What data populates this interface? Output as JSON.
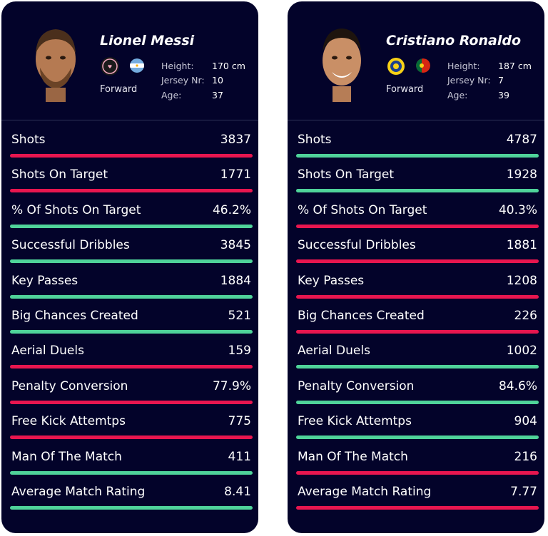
{
  "players": [
    {
      "name": "Lionel Messi",
      "position": "Forward",
      "info": [
        {
          "label": "Height:",
          "value": "170 cm"
        },
        {
          "label": "Jersey Nr:",
          "value": "10"
        },
        {
          "label": "Age:",
          "value": "37"
        }
      ],
      "stats": [
        {
          "label": "Shots",
          "value": "3837",
          "status": "red"
        },
        {
          "label": "Shots On Target",
          "value": "1771",
          "status": "red"
        },
        {
          "label": "% Of Shots On Target",
          "value": "46.2%",
          "status": "green"
        },
        {
          "label": "Successful Dribbles",
          "value": "3845",
          "status": "green"
        },
        {
          "label": "Key Passes",
          "value": "1884",
          "status": "green"
        },
        {
          "label": "Big Chances Created",
          "value": "521",
          "status": "green"
        },
        {
          "label": "Aerial Duels",
          "value": "159",
          "status": "red"
        },
        {
          "label": "Penalty Conversion",
          "value": "77.9%",
          "status": "red"
        },
        {
          "label": "Free Kick Attemtps",
          "value": "775",
          "status": "red"
        },
        {
          "label": "Man Of The Match",
          "value": "411",
          "status": "green"
        },
        {
          "label": "Average Match Rating",
          "value": "8.41",
          "status": "green"
        }
      ]
    },
    {
      "name": "Cristiano Ronaldo",
      "position": "Forward",
      "info": [
        {
          "label": "Height:",
          "value": "187 cm"
        },
        {
          "label": "Jersey Nr:",
          "value": "7"
        },
        {
          "label": "Age:",
          "value": "39"
        }
      ],
      "stats": [
        {
          "label": "Shots",
          "value": "4787",
          "status": "green"
        },
        {
          "label": "Shots On Target",
          "value": "1928",
          "status": "green"
        },
        {
          "label": "% Of Shots On Target",
          "value": "40.3%",
          "status": "red"
        },
        {
          "label": "Successful Dribbles",
          "value": "1881",
          "status": "red"
        },
        {
          "label": "Key Passes",
          "value": "1208",
          "status": "red"
        },
        {
          "label": "Big Chances Created",
          "value": "226",
          "status": "red"
        },
        {
          "label": "Aerial Duels",
          "value": "1002",
          "status": "green"
        },
        {
          "label": "Penalty Conversion",
          "value": "84.6%",
          "status": "green"
        },
        {
          "label": "Free Kick Attemtps",
          "value": "904",
          "status": "green"
        },
        {
          "label": "Man Of The Match",
          "value": "216",
          "status": "red"
        },
        {
          "label": "Average Match Rating",
          "value": "7.77",
          "status": "red"
        }
      ]
    }
  ],
  "colors": {
    "card_bg": "#03032a",
    "better": "#4fd39a",
    "worse": "#e8164f"
  }
}
